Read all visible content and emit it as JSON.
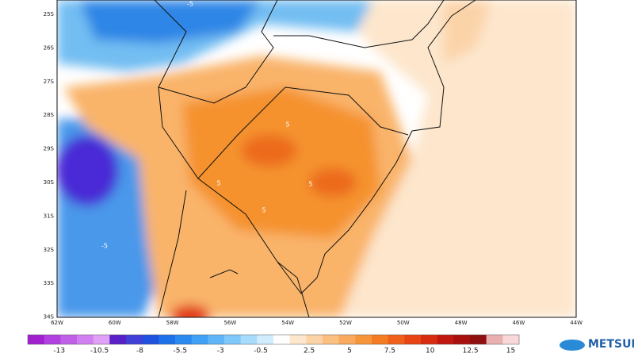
{
  "map": {
    "lat_labels": [
      "25S",
      "26S",
      "27S",
      "28S",
      "29S",
      "30S",
      "31S",
      "32S",
      "33S",
      "34S"
    ],
    "lon_labels": [
      "62W",
      "60W",
      "58W",
      "56W",
      "54W",
      "52W",
      "50W",
      "48W",
      "46W",
      "44W"
    ],
    "contour_labels": [
      "-5",
      "5",
      "5",
      "5",
      "5",
      "-5"
    ]
  },
  "colorbar": {
    "ticks": [
      -13,
      -10.5,
      -8,
      -5.5,
      -3,
      -0.5,
      2.5,
      5,
      7.5,
      10,
      12.5,
      15
    ]
  },
  "logo": {
    "name": "METSUL"
  }
}
